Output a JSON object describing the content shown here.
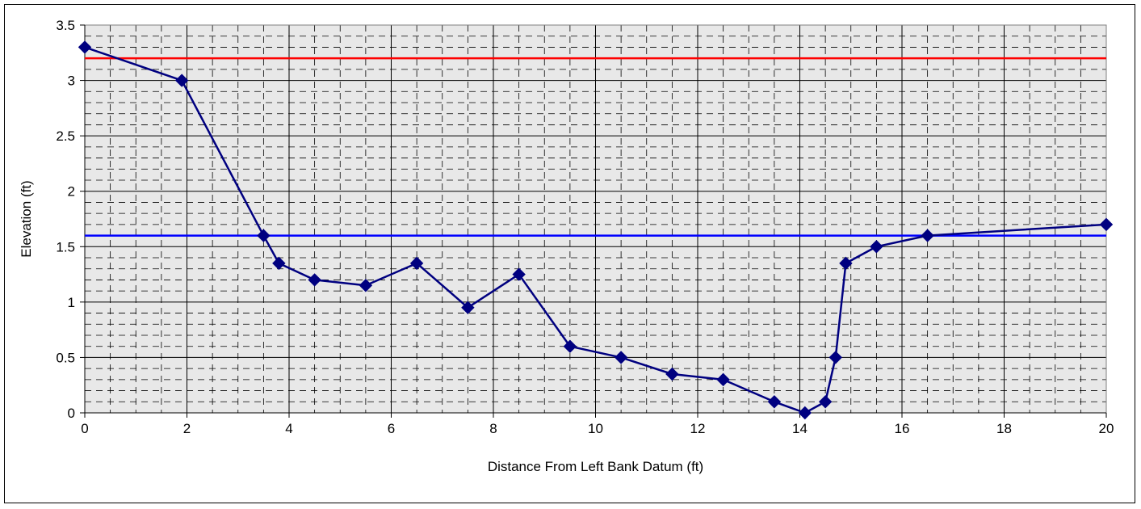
{
  "chart_data": {
    "type": "line",
    "title": "",
    "xlabel": "Distance From Left Bank Datum  (ft)",
    "ylabel": "Elevation (ft)",
    "xlim": [
      0,
      20
    ],
    "ylim": [
      0,
      3.5
    ],
    "x_ticks": [
      0,
      2,
      4,
      6,
      8,
      10,
      12,
      14,
      16,
      18,
      20
    ],
    "y_ticks": [
      0,
      0.5,
      1,
      1.5,
      2,
      2.5,
      3,
      3.5
    ],
    "x_tick_labels": [
      "0",
      "2",
      "4",
      "6",
      "8",
      "10",
      "12",
      "14",
      "16",
      "18",
      "20"
    ],
    "y_tick_labels": [
      "0",
      "0.5",
      "1",
      "1.5",
      "2",
      "2.5",
      "3",
      "3.5"
    ],
    "grid": true,
    "minor_grid": "dashed",
    "plot_background": "#e8e8e8",
    "series": [
      {
        "color": "#000080",
        "marker": "diamond",
        "x": [
          0,
          1.9,
          3.5,
          3.8,
          4.5,
          5.5,
          6.5,
          7.5,
          8.5,
          9.5,
          10.5,
          11.5,
          12.5,
          13.5,
          14.1,
          14.5,
          14.7,
          14.9,
          15.5,
          16.5,
          20
        ],
        "y": [
          3.3,
          3.0,
          1.6,
          1.35,
          1.2,
          1.15,
          1.35,
          0.95,
          1.25,
          0.6,
          0.5,
          0.35,
          0.3,
          0.1,
          0.0,
          0.1,
          0.5,
          1.35,
          1.5,
          1.6,
          1.7
        ]
      }
    ],
    "reference_lines": [
      {
        "y": 3.2,
        "color": "#ff0000"
      },
      {
        "y": 1.6,
        "color": "#0000ff"
      }
    ]
  }
}
